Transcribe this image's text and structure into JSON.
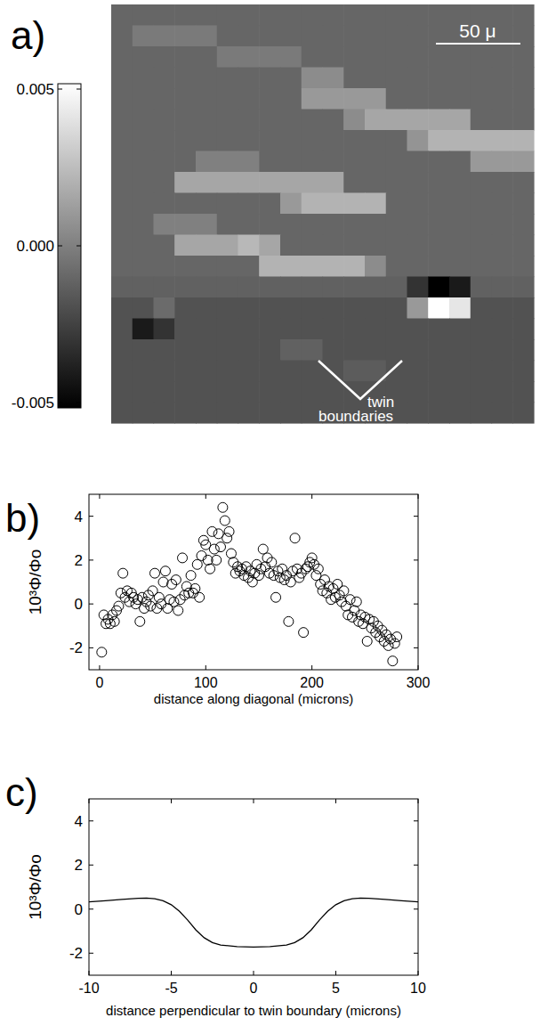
{
  "chart_data": [
    {
      "type": "heatmap",
      "title": "a)",
      "tick_labels": false,
      "annotations": [
        "50 μ",
        "twin boundaries"
      ],
      "color_range": [
        -0.005,
        0.005
      ],
      "color_ticks": [
        0.005,
        {
          "value": 0,
          "label": "0.000"
        },
        -0.005
      ],
      "cells": [
        [
          -0.001,
          -0.001,
          -0.001,
          -0.001,
          -0.001,
          -0.001,
          -0.001,
          -0.001,
          -0.001,
          -0.001,
          -0.001,
          -0.001,
          -0.001,
          -0.001,
          -0.001,
          -0.001,
          -0.001,
          -0.001,
          -0.001,
          -0.001
        ],
        [
          -0.001,
          -0.0002,
          -0.0002,
          -0.0002,
          -0.0002,
          -0.001,
          -0.001,
          -0.001,
          -0.001,
          -0.001,
          -0.001,
          -0.001,
          -0.001,
          -0.001,
          -0.001,
          -0.001,
          -0.001,
          -0.001,
          -0.001,
          -0.001
        ],
        [
          -0.001,
          -0.001,
          -0.001,
          -0.001,
          -0.001,
          -0.0002,
          -0.0002,
          -0.0002,
          -0.0002,
          -0.001,
          -0.001,
          -0.001,
          -0.001,
          -0.001,
          -0.001,
          -0.001,
          -0.001,
          -0.001,
          -0.001,
          -0.001
        ],
        [
          -0.001,
          -0.001,
          -0.001,
          -0.001,
          -0.001,
          -0.001,
          -0.001,
          -0.001,
          -0.001,
          0.0005,
          0.0005,
          -0.001,
          -0.001,
          -0.001,
          -0.001,
          -0.001,
          -0.001,
          -0.001,
          -0.001,
          -0.001
        ],
        [
          -0.001,
          -0.001,
          -0.001,
          -0.001,
          -0.001,
          -0.001,
          -0.001,
          -0.001,
          -0.001,
          0.001,
          0.001,
          0.001,
          0.001,
          -0.001,
          -0.001,
          -0.001,
          -0.001,
          -0.001,
          -0.001,
          -0.001
        ],
        [
          -0.001,
          -0.001,
          -0.001,
          -0.001,
          -0.001,
          -0.001,
          -0.001,
          -0.001,
          -0.001,
          -0.001,
          -0.001,
          0.0005,
          0.0015,
          0.0015,
          0.0015,
          0.0015,
          0.0015,
          -0.001,
          -0.001,
          -0.001
        ],
        [
          -0.001,
          -0.001,
          -0.001,
          -0.001,
          -0.001,
          -0.001,
          -0.001,
          -0.001,
          -0.001,
          -0.001,
          -0.001,
          -0.001,
          -0.001,
          -0.001,
          0.0008,
          0.002,
          0.002,
          0.002,
          0.002,
          0.002
        ],
        [
          -0.001,
          -0.001,
          -0.001,
          -0.001,
          0,
          0,
          0,
          -0.001,
          -0.001,
          -0.001,
          -0.001,
          -0.001,
          -0.001,
          -0.001,
          -0.001,
          -0.001,
          -0.001,
          0.001,
          0.001,
          0.001
        ],
        [
          -0.001,
          -0.001,
          -0.001,
          0.0015,
          0.0015,
          0.0015,
          0.0015,
          0.0015,
          0.0015,
          0.0015,
          0.0015,
          -0.001,
          -0.001,
          -0.001,
          -0.001,
          -0.001,
          -0.001,
          -0.001,
          -0.001,
          -0.001
        ],
        [
          -0.001,
          -0.001,
          -0.001,
          -0.001,
          -0.001,
          -0.001,
          -0.001,
          -0.001,
          0.001,
          0.002,
          0.002,
          0.002,
          0.002,
          -0.001,
          -0.001,
          -0.001,
          -0.001,
          -0.001,
          -0.001,
          -0.001
        ],
        [
          -0.001,
          -0.001,
          0,
          0,
          0,
          -0.001,
          -0.001,
          -0.001,
          -0.001,
          -0.001,
          -0.001,
          -0.001,
          -0.001,
          -0.001,
          -0.001,
          -0.001,
          -0.001,
          -0.001,
          -0.001,
          -0.001
        ],
        [
          -0.001,
          -0.001,
          -0.001,
          0.0015,
          0.0015,
          0.0015,
          0.0022,
          0.0015,
          -0.001,
          -0.001,
          -0.001,
          -0.001,
          -0.001,
          -0.001,
          -0.001,
          -0.001,
          -0.001,
          -0.001,
          -0.001,
          -0.001
        ],
        [
          -0.001,
          -0.001,
          -0.001,
          -0.001,
          -0.001,
          -0.001,
          -0.001,
          0.002,
          0.002,
          0.002,
          0.002,
          0.002,
          0.0005,
          -0.001,
          -0.001,
          -0.001,
          -0.001,
          -0.001,
          -0.001,
          -0.001
        ],
        [
          -0.0012,
          -0.0012,
          -0.0012,
          -0.0012,
          -0.0012,
          -0.0012,
          -0.0012,
          -0.0012,
          -0.0012,
          -0.0012,
          -0.0012,
          -0.0012,
          -0.0012,
          -0.0012,
          -0.003,
          -0.005,
          -0.004,
          -0.0012,
          -0.0012,
          -0.0012
        ],
        [
          -0.0018,
          -0.0018,
          -0.0008,
          -0.0018,
          -0.0018,
          -0.0018,
          -0.0018,
          -0.0018,
          -0.0018,
          -0.0018,
          -0.0018,
          -0.0018,
          -0.0018,
          -0.0018,
          0.001,
          0.005,
          0.004,
          -0.0018,
          -0.0018,
          -0.0018
        ],
        [
          -0.0018,
          -0.004,
          -0.003,
          -0.0018,
          -0.0018,
          -0.0018,
          -0.0018,
          -0.0018,
          -0.0018,
          -0.0018,
          -0.0018,
          -0.0018,
          -0.0018,
          -0.0018,
          -0.0018,
          -0.0018,
          -0.0018,
          -0.0018,
          -0.0018,
          -0.0018
        ],
        [
          -0.0018,
          -0.0018,
          -0.0018,
          -0.0018,
          -0.0018,
          -0.0018,
          -0.0018,
          -0.0018,
          -0.0012,
          -0.0012,
          -0.0018,
          -0.0018,
          -0.0018,
          -0.0018,
          -0.0018,
          -0.0018,
          -0.0018,
          -0.0018,
          -0.0018,
          -0.0018
        ],
        [
          -0.0018,
          -0.0018,
          -0.0018,
          -0.0018,
          -0.0018,
          -0.0018,
          -0.0018,
          -0.0018,
          -0.0018,
          -0.0018,
          -0.0018,
          -0.0014,
          -0.0014,
          -0.0018,
          -0.0018,
          -0.0018,
          -0.0018,
          -0.0018,
          -0.0018,
          -0.0018
        ],
        [
          -0.0018,
          -0.0018,
          -0.0018,
          -0.0018,
          -0.0018,
          -0.0018,
          -0.0018,
          -0.0018,
          -0.0018,
          -0.0018,
          -0.0018,
          -0.0018,
          -0.0018,
          -0.0018,
          -0.0018,
          -0.0018,
          -0.0018,
          -0.0018,
          -0.0018,
          -0.0018
        ],
        [
          -0.0018,
          -0.0018,
          -0.0018,
          -0.0018,
          -0.0018,
          -0.0018,
          -0.0018,
          -0.0018,
          -0.0018,
          -0.0018,
          -0.0018,
          -0.0018,
          -0.0018,
          -0.0018,
          -0.0018,
          -0.0018,
          -0.0018,
          -0.0018,
          -0.0018,
          -0.0018
        ]
      ]
    },
    {
      "type": "scatter",
      "title": "b)",
      "x_label": "distance along diagonal (microns)",
      "y_label": "10³Φ/Φo",
      "marker": "circle",
      "color": "#000000",
      "xlim": [
        -10,
        300
      ],
      "ylim": [
        -3,
        5
      ],
      "xticks": [
        0,
        100,
        200,
        300
      ],
      "yticks": [
        -2,
        0,
        2,
        4
      ],
      "x": [
        2,
        4,
        6,
        8,
        10,
        12,
        14,
        16,
        18,
        20,
        22,
        24,
        26,
        28,
        30,
        32,
        34,
        36,
        38,
        40,
        42,
        44,
        46,
        48,
        50,
        52,
        54,
        56,
        58,
        60,
        62,
        64,
        66,
        68,
        70,
        72,
        74,
        76,
        78,
        80,
        82,
        84,
        86,
        88,
        90,
        92,
        94,
        96,
        98,
        100,
        102,
        104,
        106,
        108,
        110,
        112,
        114,
        116,
        118,
        120,
        122,
        124,
        126,
        128,
        130,
        132,
        134,
        136,
        138,
        140,
        142,
        144,
        146,
        148,
        150,
        152,
        154,
        156,
        158,
        160,
        162,
        164,
        166,
        168,
        170,
        172,
        174,
        176,
        178,
        180,
        182,
        184,
        186,
        188,
        190,
        192,
        194,
        196,
        198,
        200,
        202,
        204,
        206,
        208,
        210,
        212,
        214,
        216,
        218,
        220,
        222,
        224,
        226,
        228,
        230,
        232,
        234,
        236,
        238,
        240,
        242,
        244,
        246,
        248,
        250,
        252,
        254,
        256,
        258,
        260,
        262,
        264,
        266,
        268,
        270,
        272,
        274,
        276,
        278,
        280
      ],
      "values": [
        -2.2,
        -0.5,
        -0.9,
        -0.7,
        -0.9,
        -0.5,
        -0.8,
        -0.3,
        -0.1,
        0.5,
        1.4,
        0.3,
        0.6,
        0.1,
        0.5,
        0.3,
        0.0,
        0.2,
        -0.8,
        0.3,
        -0.2,
        0.1,
        0.4,
        -0.1,
        0.6,
        1.4,
        -0.2,
        0.3,
        0.0,
        1.0,
        1.5,
        -0.2,
        0.2,
        0.9,
        0.1,
        1.1,
        -0.3,
        0.2,
        2.1,
        0.4,
        0.8,
        0.5,
        1.3,
        0.5,
        0.7,
        1.8,
        0.3,
        2.2,
        2.9,
        2.7,
        2.0,
        1.6,
        3.3,
        2.5,
        2.0,
        3.2,
        2.6,
        4.4,
        3.8,
        3.0,
        3.3,
        2.3,
        1.9,
        1.4,
        1.7,
        1.5,
        1.6,
        1.3,
        1.7,
        1.2,
        1.5,
        1.0,
        1.4,
        1.8,
        1.3,
        1.6,
        2.5,
        1.7,
        2.1,
        1.4,
        1.9,
        1.3,
        0.3,
        1.5,
        1.2,
        1.6,
        1.1,
        1.3,
        -0.8,
        1.0,
        1.5,
        3.0,
        1.6,
        1.2,
        1.4,
        -1.3,
        1.6,
        1.7,
        1.9,
        2.1,
        1.8,
        1.3,
        1.6,
        0.9,
        0.6,
        1.1,
        0.5,
        0.8,
        0.2,
        0.7,
        0.3,
        0.9,
        0.4,
        0.1,
        0.6,
        -0.1,
        -0.5,
        0.2,
        -0.6,
        -0.3,
        0.1,
        -0.8,
        -0.5,
        -0.9,
        -0.6,
        -1.7,
        -0.7,
        -1.1,
        -0.8,
        -1.3,
        -1.0,
        -1.5,
        -1.2,
        -1.7,
        -1.4,
        -1.9,
        -1.6,
        -2.6,
        -1.8,
        -1.5
      ]
    },
    {
      "type": "line",
      "title": "c)",
      "x_label": "distance perpendicular to twin boundary (microns)",
      "y_label": "10³Φ/Φo",
      "line_style": "solid",
      "color": "#000000",
      "xlim": [
        -10,
        10
      ],
      "ylim": [
        -3,
        5
      ],
      "xticks": [
        -10,
        -5,
        0,
        5,
        10
      ],
      "yticks": [
        -2,
        0,
        2,
        4
      ],
      "x": [
        -10,
        -9,
        -8,
        -7,
        -6.5,
        -6,
        -5.5,
        -5,
        -4.5,
        -4,
        -3.5,
        -3,
        -2.5,
        -2,
        -1,
        0,
        1,
        2,
        2.5,
        3,
        3.5,
        4,
        4.5,
        5,
        5.5,
        6,
        6.5,
        7,
        8,
        9,
        10
      ],
      "values": [
        0.33,
        0.38,
        0.44,
        0.49,
        0.5,
        0.47,
        0.38,
        0.2,
        -0.1,
        -0.5,
        -0.95,
        -1.3,
        -1.52,
        -1.63,
        -1.7,
        -1.72,
        -1.7,
        -1.63,
        -1.52,
        -1.3,
        -0.95,
        -0.5,
        -0.1,
        0.2,
        0.38,
        0.47,
        0.5,
        0.49,
        0.44,
        0.38,
        0.33
      ]
    }
  ]
}
